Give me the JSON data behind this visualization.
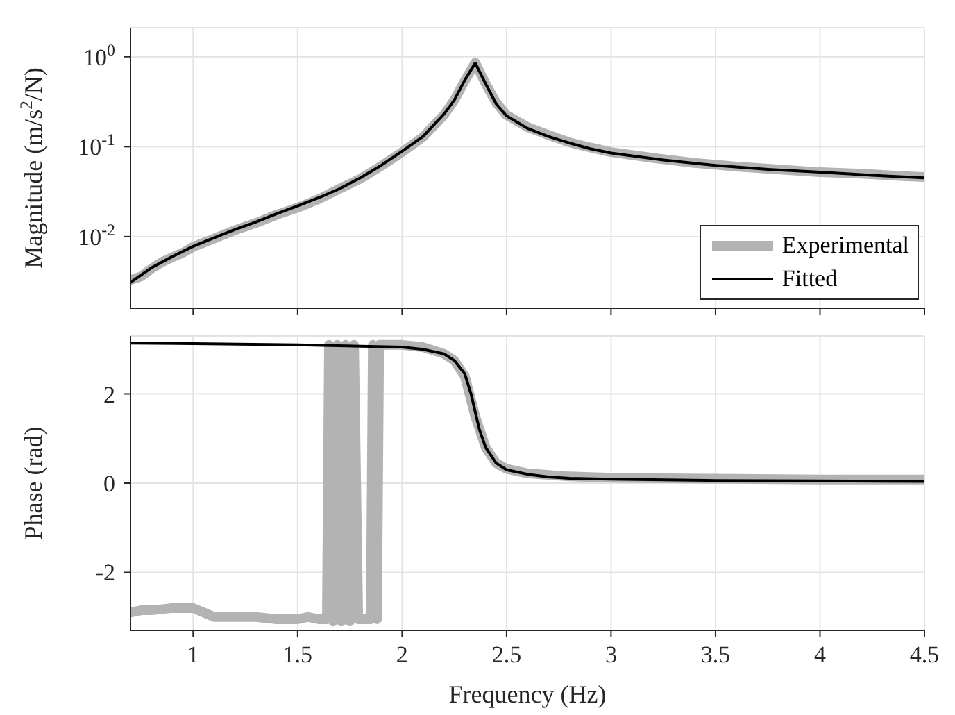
{
  "chart_data": [
    {
      "type": "line",
      "ylabel": "Magnitude (m/s$^{2}$/N)",
      "log": "y",
      "grid": true,
      "legend": "bottom right",
      "tick_labels": "y",
      "xlim": [
        0.7,
        4.5
      ],
      "xticks": [
        {
          "value": 1,
          "label": null
        },
        {
          "value": 1.5,
          "label": null
        },
        {
          "value": 2,
          "label": null
        },
        {
          "value": 2.5,
          "label": null
        },
        {
          "value": 3,
          "label": null
        },
        {
          "value": 3.5,
          "label": null
        },
        {
          "value": 4,
          "label": null
        },
        {
          "value": 4.5,
          "label": null
        }
      ],
      "ylim": [
        0.0016,
        2.1
      ],
      "yticks": [
        {
          "value": 0.01,
          "label": "10$^{-2}$"
        },
        {
          "value": 0.1,
          "label": "10$^{-1}$"
        },
        {
          "value": 1,
          "label": "10$^{0}$"
        }
      ],
      "series": [
        {
          "name": "Experimental",
          "color": "#b3b3b3",
          "x": [
            0.7,
            0.75,
            0.8,
            0.85,
            0.9,
            0.95,
            1.0,
            1.1,
            1.2,
            1.3,
            1.4,
            1.5,
            1.6,
            1.7,
            1.8,
            1.9,
            2.0,
            2.1,
            2.2,
            2.25,
            2.3,
            2.35,
            2.4,
            2.45,
            2.5,
            2.6,
            2.7,
            2.8,
            2.9,
            3.0,
            3.2,
            3.4,
            3.6,
            3.8,
            4.0,
            4.2,
            4.4,
            4.5
          ],
          "values": [
            0.0033,
            0.0036,
            0.0044,
            0.0052,
            0.0059,
            0.0066,
            0.0077,
            0.0095,
            0.0118,
            0.0142,
            0.0175,
            0.021,
            0.026,
            0.034,
            0.044,
            0.061,
            0.087,
            0.128,
            0.225,
            0.33,
            0.54,
            0.86,
            0.5,
            0.31,
            0.225,
            0.165,
            0.135,
            0.112,
            0.098,
            0.087,
            0.075,
            0.066,
            0.06,
            0.056,
            0.052,
            0.05,
            0.047,
            0.046
          ]
        },
        {
          "name": "Fitted",
          "color": "#000000",
          "x": [
            0.7,
            0.8,
            0.9,
            1.0,
            1.1,
            1.2,
            1.3,
            1.4,
            1.5,
            1.6,
            1.7,
            1.8,
            1.9,
            2.0,
            2.1,
            2.2,
            2.25,
            2.3,
            2.35,
            2.4,
            2.45,
            2.5,
            2.6,
            2.7,
            2.8,
            2.9,
            3.0,
            3.25,
            3.5,
            3.75,
            4.0,
            4.25,
            4.5
          ],
          "values": [
            0.0031,
            0.0045,
            0.006,
            0.0078,
            0.0097,
            0.012,
            0.0145,
            0.018,
            0.022,
            0.027,
            0.034,
            0.045,
            0.062,
            0.089,
            0.13,
            0.23,
            0.33,
            0.55,
            0.85,
            0.5,
            0.3,
            0.22,
            0.16,
            0.13,
            0.11,
            0.095,
            0.085,
            0.071,
            0.062,
            0.056,
            0.052,
            0.048,
            0.045
          ]
        }
      ]
    },
    {
      "type": "line",
      "xlabel": "Frequency (Hz)",
      "ylabel": "Phase (rad)",
      "grid": true,
      "xlim": [
        0.7,
        4.5
      ],
      "xticks": [
        1,
        1.5,
        2,
        2.5,
        3,
        3.5,
        4,
        4.5
      ],
      "ylim": [
        -3.3,
        3.3
      ],
      "yticks": [
        -2,
        0,
        2
      ],
      "series": [
        {
          "color": "#b3b3b3",
          "x": [
            0.7,
            0.75,
            0.8,
            0.9,
            1.0,
            1.05,
            1.1,
            1.2,
            1.3,
            1.4,
            1.5,
            1.55,
            1.6,
            1.64,
            1.65,
            1.67,
            1.69,
            1.71,
            1.73,
            1.75,
            1.77,
            1.79,
            1.8,
            1.85,
            1.86,
            1.88,
            1.89,
            1.9,
            2.0,
            2.1,
            2.2,
            2.25,
            2.3,
            2.35,
            2.4,
            2.45,
            2.5,
            2.6,
            2.8,
            3.0,
            3.5,
            4.0,
            4.5
          ],
          "values": [
            -2.9,
            -2.85,
            -2.85,
            -2.8,
            -2.8,
            -2.9,
            -3.0,
            -3.0,
            -3.0,
            -3.05,
            -3.05,
            -3.0,
            -3.05,
            -3.05,
            3.1,
            -3.1,
            3.1,
            -3.1,
            3.1,
            -3.1,
            3.1,
            -3.05,
            -3.05,
            -3.05,
            3.1,
            -3.05,
            3.1,
            3.1,
            3.1,
            3.05,
            2.9,
            2.75,
            2.4,
            1.5,
            0.8,
            0.45,
            0.32,
            0.22,
            0.15,
            0.12,
            0.1,
            0.08,
            0.08
          ]
        },
        {
          "color": "#000000",
          "x": [
            0.7,
            1.0,
            1.5,
            2.0,
            2.1,
            2.2,
            2.25,
            2.3,
            2.33,
            2.35,
            2.37,
            2.4,
            2.45,
            2.5,
            2.6,
            2.7,
            2.8,
            3.0,
            3.5,
            4.0,
            4.5
          ],
          "values": [
            3.14,
            3.13,
            3.1,
            3.05,
            3.0,
            2.9,
            2.75,
            2.45,
            2.0,
            1.6,
            1.2,
            0.8,
            0.45,
            0.3,
            0.2,
            0.14,
            0.11,
            0.09,
            0.06,
            0.05,
            0.04
          ]
        }
      ]
    }
  ]
}
